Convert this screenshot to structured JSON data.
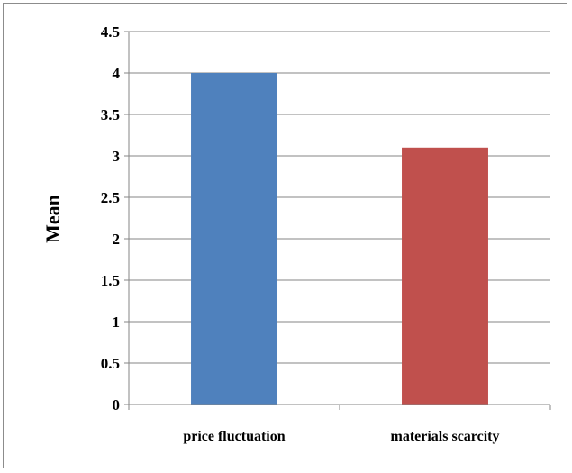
{
  "chart_data": {
    "type": "bar",
    "title": "",
    "xlabel": "",
    "ylabel": "Mean",
    "ylim": [
      0,
      4.5
    ],
    "y_ticks": [
      0,
      0.5,
      1,
      1.5,
      2,
      2.5,
      3,
      3.5,
      4,
      4.5
    ],
    "y_tick_labels": [
      "0",
      "0.5",
      "1",
      "1.5",
      "2",
      "2.5",
      "3",
      "3.5",
      "4",
      "4.5"
    ],
    "categories": [
      "price fluctuation",
      "materials scarcity"
    ],
    "values": [
      4.0,
      3.1
    ],
    "bar_colors": [
      "#4f81bd",
      "#c0504d"
    ],
    "grid": true,
    "legend": "none"
  }
}
